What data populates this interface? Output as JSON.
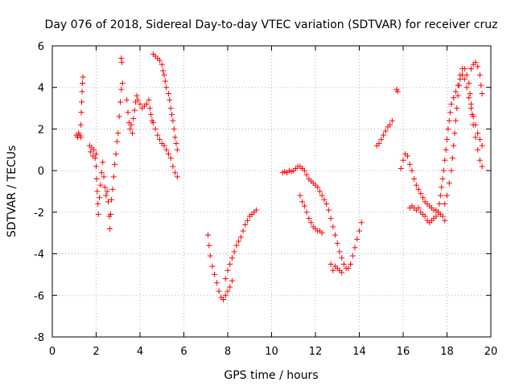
{
  "chart_data": {
    "type": "scatter",
    "title": "Day 076 of 2018, Sidereal Day-to-day VTEC variation (SDTVAR) for receiver cruz",
    "xlabel": "GPS time / hours",
    "ylabel": "SDTVAR / TECUs",
    "xlim": [
      0,
      20
    ],
    "ylim": [
      -8,
      6
    ],
    "xticks": [
      0,
      2,
      4,
      6,
      8,
      10,
      12,
      14,
      16,
      18,
      20
    ],
    "yticks": [
      -8,
      -6,
      -4,
      -2,
      0,
      2,
      4,
      6
    ],
    "grid": true,
    "marker": "+",
    "color": "#ff0000",
    "series": [
      {
        "name": "seg-a1",
        "points": [
          [
            1.1,
            1.7
          ],
          [
            1.15,
            1.6
          ],
          [
            1.2,
            1.8
          ],
          [
            1.25,
            1.7
          ],
          [
            1.3,
            1.6
          ],
          [
            1.3,
            2.2
          ],
          [
            1.32,
            2.8
          ],
          [
            1.34,
            3.3
          ],
          [
            1.36,
            3.8
          ],
          [
            1.38,
            4.2
          ],
          [
            1.4,
            4.5
          ]
        ]
      },
      {
        "name": "seg-a2",
        "points": [
          [
            1.7,
            1.2
          ],
          [
            1.75,
            0.9
          ],
          [
            1.8,
            1.1
          ],
          [
            1.85,
            0.7
          ],
          [
            1.9,
            1.0
          ],
          [
            1.95,
            0.6
          ],
          [
            2.0,
            0.8
          ],
          [
            2.0,
            0.2
          ],
          [
            2.02,
            -0.4
          ],
          [
            2.05,
            -1.0
          ],
          [
            2.08,
            -1.6
          ],
          [
            2.1,
            -2.1
          ],
          [
            2.15,
            -1.3
          ],
          [
            2.2,
            -0.7
          ],
          [
            2.25,
            -0.1
          ],
          [
            2.3,
            0.4
          ],
          [
            2.35,
            -0.3
          ],
          [
            2.4,
            -0.8
          ],
          [
            2.45,
            -1.2
          ],
          [
            2.5,
            -1.0
          ],
          [
            2.55,
            -1.5
          ],
          [
            2.6,
            -2.2
          ],
          [
            2.62,
            -2.8
          ],
          [
            2.66,
            -2.1
          ],
          [
            2.7,
            -1.4
          ],
          [
            2.75,
            -0.9
          ],
          [
            2.8,
            -0.3
          ],
          [
            2.85,
            0.3
          ],
          [
            2.9,
            0.8
          ],
          [
            2.95,
            1.4
          ],
          [
            3.0,
            1.8
          ],
          [
            3.05,
            2.6
          ],
          [
            3.1,
            3.3
          ],
          [
            3.15,
            3.9
          ],
          [
            3.2,
            4.2
          ],
          [
            3.15,
            5.4
          ],
          [
            3.17,
            5.2
          ]
        ]
      },
      {
        "name": "seg-a3",
        "points": [
          [
            3.4,
            3.4
          ],
          [
            3.45,
            2.8
          ],
          [
            3.5,
            2.3
          ],
          [
            3.55,
            2.0
          ],
          [
            3.6,
            2.2
          ],
          [
            3.65,
            1.8
          ],
          [
            3.7,
            2.5
          ],
          [
            3.75,
            2.9
          ],
          [
            3.8,
            3.3
          ],
          [
            3.85,
            3.6
          ],
          [
            3.9,
            3.4
          ],
          [
            4.0,
            3.2
          ],
          [
            4.1,
            3.0
          ],
          [
            4.2,
            3.1
          ],
          [
            4.3,
            3.2
          ],
          [
            4.4,
            3.4
          ],
          [
            4.45,
            3.0
          ],
          [
            4.5,
            2.7
          ],
          [
            4.55,
            2.4
          ],
          [
            4.6,
            2.3
          ],
          [
            4.7,
            2.0
          ],
          [
            4.8,
            1.7
          ],
          [
            4.9,
            1.5
          ],
          [
            5.0,
            1.3
          ],
          [
            5.1,
            1.2
          ],
          [
            5.2,
            1.0
          ],
          [
            5.3,
            0.8
          ],
          [
            5.4,
            0.6
          ],
          [
            5.5,
            0.2
          ],
          [
            5.6,
            -0.1
          ],
          [
            5.7,
            -0.3
          ]
        ]
      },
      {
        "name": "seg-a4",
        "points": [
          [
            4.6,
            5.6
          ],
          [
            4.7,
            5.5
          ],
          [
            4.8,
            5.4
          ],
          [
            4.9,
            5.3
          ],
          [
            5.0,
            5.1
          ],
          [
            5.05,
            4.8
          ],
          [
            5.1,
            4.6
          ],
          [
            5.15,
            4.3
          ],
          [
            5.2,
            4.0
          ],
          [
            5.3,
            3.7
          ],
          [
            5.35,
            3.4
          ],
          [
            5.4,
            3.0
          ],
          [
            5.45,
            2.7
          ],
          [
            5.5,
            2.4
          ],
          [
            5.55,
            2.0
          ],
          [
            5.6,
            1.6
          ],
          [
            5.65,
            1.3
          ],
          [
            5.7,
            1.0
          ]
        ]
      },
      {
        "name": "seg-b",
        "points": [
          [
            7.1,
            -3.1
          ],
          [
            7.15,
            -3.6
          ],
          [
            7.2,
            -4.1
          ],
          [
            7.3,
            -4.6
          ],
          [
            7.4,
            -5.0
          ],
          [
            7.5,
            -5.4
          ],
          [
            7.6,
            -5.8
          ],
          [
            7.7,
            -6.1
          ],
          [
            7.8,
            -6.2
          ],
          [
            7.9,
            -6.0
          ],
          [
            8.0,
            -5.8
          ],
          [
            8.1,
            -5.6
          ],
          [
            8.2,
            -5.3
          ],
          [
            7.9,
            -5.2
          ],
          [
            8.0,
            -4.8
          ],
          [
            8.1,
            -4.5
          ],
          [
            8.2,
            -4.2
          ],
          [
            8.3,
            -3.9
          ],
          [
            8.4,
            -3.6
          ],
          [
            8.5,
            -3.4
          ],
          [
            8.6,
            -3.2
          ],
          [
            8.7,
            -2.9
          ],
          [
            8.8,
            -2.6
          ],
          [
            8.9,
            -2.4
          ],
          [
            9.0,
            -2.2
          ],
          [
            9.1,
            -2.1
          ],
          [
            9.2,
            -2.0
          ],
          [
            9.3,
            -1.9
          ]
        ]
      },
      {
        "name": "seg-c1",
        "points": [
          [
            10.5,
            -0.1
          ],
          [
            10.6,
            -0.05
          ],
          [
            10.7,
            -0.1
          ],
          [
            10.8,
            0.0
          ],
          [
            10.9,
            -0.05
          ],
          [
            11.0,
            0.0
          ],
          [
            11.1,
            0.1
          ],
          [
            11.2,
            0.2
          ],
          [
            11.3,
            0.2
          ],
          [
            11.4,
            0.1
          ],
          [
            11.5,
            0.0
          ],
          [
            11.6,
            -0.2
          ],
          [
            11.7,
            -0.4
          ],
          [
            11.8,
            -0.5
          ],
          [
            11.9,
            -0.6
          ],
          [
            12.0,
            -0.7
          ],
          [
            12.1,
            -0.8
          ],
          [
            12.2,
            -1.0
          ],
          [
            12.3,
            -1.2
          ],
          [
            12.4,
            -1.4
          ],
          [
            12.5,
            -1.6
          ],
          [
            12.6,
            -1.9
          ],
          [
            12.7,
            -2.3
          ],
          [
            12.8,
            -2.7
          ],
          [
            12.9,
            -3.1
          ],
          [
            13.0,
            -3.5
          ],
          [
            13.1,
            -3.9
          ],
          [
            13.2,
            -4.2
          ],
          [
            13.3,
            -4.5
          ],
          [
            13.4,
            -4.7
          ],
          [
            13.5,
            -4.7
          ],
          [
            13.6,
            -4.5
          ],
          [
            13.7,
            -4.1
          ],
          [
            13.8,
            -3.7
          ],
          [
            13.9,
            -3.3
          ],
          [
            14.0,
            -2.9
          ],
          [
            14.1,
            -2.5
          ]
        ]
      },
      {
        "name": "seg-c2",
        "points": [
          [
            11.3,
            -1.2
          ],
          [
            11.4,
            -1.5
          ],
          [
            11.5,
            -1.7
          ],
          [
            11.6,
            -2.0
          ],
          [
            11.7,
            -2.3
          ],
          [
            11.8,
            -2.5
          ],
          [
            11.9,
            -2.7
          ],
          [
            12.0,
            -2.8
          ],
          [
            12.1,
            -2.9
          ],
          [
            12.2,
            -2.9
          ],
          [
            12.3,
            -3.0
          ],
          [
            12.7,
            -4.5
          ],
          [
            12.8,
            -4.8
          ],
          [
            12.9,
            -4.6
          ],
          [
            13.0,
            -4.7
          ],
          [
            13.1,
            -4.8
          ],
          [
            13.2,
            -4.9
          ]
        ]
      },
      {
        "name": "seg-d1",
        "points": [
          [
            14.8,
            1.2
          ],
          [
            14.9,
            1.3
          ],
          [
            15.0,
            1.5
          ],
          [
            15.1,
            1.7
          ],
          [
            15.2,
            1.9
          ],
          [
            15.3,
            2.1
          ],
          [
            15.4,
            2.2
          ],
          [
            15.5,
            2.4
          ],
          [
            15.7,
            3.9
          ],
          [
            15.75,
            3.8
          ]
        ]
      },
      {
        "name": "seg-d2",
        "points": [
          [
            15.9,
            0.1
          ],
          [
            16.0,
            0.5
          ],
          [
            16.1,
            0.8
          ],
          [
            16.2,
            0.7
          ],
          [
            16.3,
            0.3
          ],
          [
            16.4,
            0.0
          ],
          [
            16.5,
            -0.4
          ],
          [
            16.6,
            -0.7
          ],
          [
            16.7,
            -0.9
          ],
          [
            16.8,
            -1.1
          ],
          [
            16.9,
            -1.3
          ],
          [
            17.0,
            -1.5
          ],
          [
            17.1,
            -1.6
          ],
          [
            17.2,
            -1.7
          ],
          [
            17.3,
            -1.8
          ],
          [
            17.4,
            -1.9
          ],
          [
            17.5,
            -1.9
          ],
          [
            17.6,
            -2.0
          ],
          [
            17.7,
            -2.1
          ],
          [
            17.8,
            -2.2
          ],
          [
            17.9,
            -2.4
          ]
        ]
      },
      {
        "name": "seg-d3",
        "points": [
          [
            16.3,
            -1.8
          ],
          [
            16.4,
            -1.7
          ],
          [
            16.5,
            -1.8
          ],
          [
            16.6,
            -1.9
          ],
          [
            16.7,
            -1.8
          ],
          [
            16.8,
            -2.0
          ],
          [
            16.9,
            -2.1
          ],
          [
            17.0,
            -2.2
          ],
          [
            17.1,
            -2.4
          ],
          [
            17.2,
            -2.5
          ],
          [
            17.3,
            -2.4
          ],
          [
            17.4,
            -2.3
          ],
          [
            17.5,
            -2.2
          ],
          [
            17.6,
            -2.0
          ],
          [
            17.65,
            -1.6
          ],
          [
            17.7,
            -1.2
          ],
          [
            17.75,
            -0.8
          ],
          [
            17.8,
            -0.4
          ],
          [
            17.85,
            0.0
          ],
          [
            17.9,
            0.5
          ],
          [
            17.95,
            1.0
          ],
          [
            18.0,
            1.5
          ],
          [
            18.05,
            2.0
          ],
          [
            18.1,
            2.4
          ],
          [
            18.15,
            2.8
          ],
          [
            18.2,
            3.2
          ],
          [
            18.3,
            3.5
          ],
          [
            18.4,
            3.8
          ],
          [
            18.5,
            4.1
          ],
          [
            18.6,
            4.4
          ],
          [
            18.7,
            4.6
          ],
          [
            18.8,
            4.4
          ],
          [
            18.9,
            4.0
          ],
          [
            19.0,
            3.5
          ],
          [
            19.1,
            3.0
          ],
          [
            19.2,
            2.6
          ],
          [
            19.3,
            2.2
          ],
          [
            19.4,
            1.8
          ],
          [
            19.5,
            1.5
          ],
          [
            19.6,
            1.2
          ]
        ]
      },
      {
        "name": "seg-d4",
        "points": [
          [
            17.9,
            -1.6
          ],
          [
            18.0,
            -1.2
          ],
          [
            18.1,
            -0.6
          ],
          [
            18.2,
            0.0
          ],
          [
            18.25,
            0.6
          ],
          [
            18.3,
            1.2
          ],
          [
            18.35,
            1.8
          ],
          [
            18.4,
            2.4
          ],
          [
            18.45,
            3.0
          ],
          [
            18.5,
            3.6
          ],
          [
            18.55,
            4.1
          ],
          [
            18.6,
            4.6
          ],
          [
            18.7,
            4.9
          ],
          [
            18.8,
            4.9
          ],
          [
            18.9,
            4.6
          ],
          [
            19.0,
            4.2
          ],
          [
            19.05,
            3.7
          ],
          [
            19.1,
            3.2
          ],
          [
            19.15,
            2.7
          ],
          [
            19.2,
            2.2
          ],
          [
            19.3,
            1.6
          ],
          [
            19.4,
            1.0
          ],
          [
            19.5,
            0.5
          ],
          [
            19.6,
            0.2
          ]
        ]
      },
      {
        "name": "seg-d5",
        "points": [
          [
            19.1,
            4.9
          ],
          [
            19.2,
            5.1
          ],
          [
            19.3,
            5.2
          ],
          [
            19.4,
            5.0
          ],
          [
            19.5,
            4.6
          ],
          [
            19.55,
            4.1
          ],
          [
            19.6,
            3.7
          ]
        ]
      }
    ]
  }
}
